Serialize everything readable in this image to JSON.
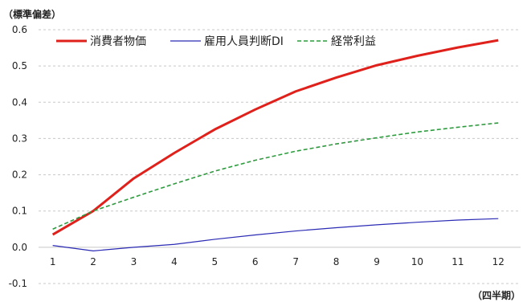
{
  "chart_data": {
    "type": "line",
    "y_unit_label": "（標準偏差）",
    "x_unit_label": "（四半期）",
    "x": [
      1,
      2,
      3,
      4,
      5,
      6,
      7,
      8,
      9,
      10,
      11,
      12
    ],
    "ylim": [
      -0.1,
      0.6
    ],
    "yticks": [
      -0.1,
      0.0,
      0.1,
      0.2,
      0.3,
      0.4,
      0.5,
      0.6
    ],
    "grid": "horizontal-dashed",
    "legend_position": "top-left",
    "series": [
      {
        "name": "消費者物価",
        "color": "#e0201b",
        "style": "solid-thick",
        "values": [
          0.035,
          0.1,
          0.19,
          0.26,
          0.325,
          0.38,
          0.43,
          0.468,
          0.502,
          0.528,
          0.551,
          0.571
        ]
      },
      {
        "name": "雇用人員判断DI",
        "color": "#2b2bb5",
        "style": "solid-thin",
        "values": [
          0.005,
          -0.01,
          0.0,
          0.008,
          0.022,
          0.034,
          0.045,
          0.054,
          0.062,
          0.069,
          0.075,
          0.079
        ]
      },
      {
        "name": "経常利益",
        "color": "#2e9a3e",
        "style": "dashed",
        "values": [
          0.05,
          0.1,
          0.138,
          0.175,
          0.21,
          0.24,
          0.265,
          0.285,
          0.302,
          0.318,
          0.331,
          0.343
        ]
      }
    ]
  }
}
